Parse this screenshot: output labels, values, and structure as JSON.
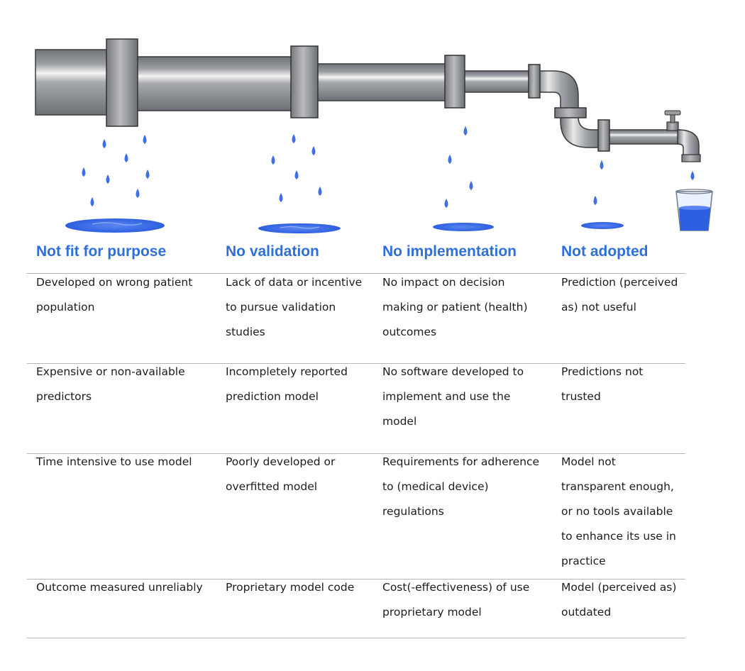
{
  "stages": [
    {
      "header": "Not fit for purpose",
      "reasons": [
        "Developed on wrong patient\npopulation",
        "Expensive or non-available\npredictors",
        "Time intensive to use model",
        "Outcome measured unreliably"
      ]
    },
    {
      "header": "No validation",
      "reasons": [
        "Lack of data or incentive\nto pursue validation\nstudies",
        "Incompletely reported\nprediction model",
        "Poorly developed or\noverfitted model",
        "Proprietary model code"
      ]
    },
    {
      "header": "No implementation",
      "reasons": [
        "No impact on decision\nmaking or patient (health)\noutcomes",
        "No software developed to\nimplement and use the\nmodel",
        "Requirements for adherence\nto (medical device)\nregulations",
        "Cost(-effectiveness) of use\nproprietary model"
      ]
    },
    {
      "header": "Not adopted",
      "reasons": [
        "Prediction (perceived\nas) not useful",
        "Predictions not\ntrusted",
        "Model not\ntransparent enough,\nor no tools available\nto enhance its use in\npractice",
        "Model (perceived as)\noutdated"
      ]
    }
  ],
  "colors": {
    "header_text": "#2f6fd9",
    "water": "#3f6ee8",
    "pipe": "#a9abaf",
    "rule": "#b5b5b5"
  },
  "icons": [
    "pipe-icon",
    "flange-icon",
    "water-drop-icon",
    "puddle-icon",
    "faucet-icon",
    "glass-of-water-icon"
  ]
}
